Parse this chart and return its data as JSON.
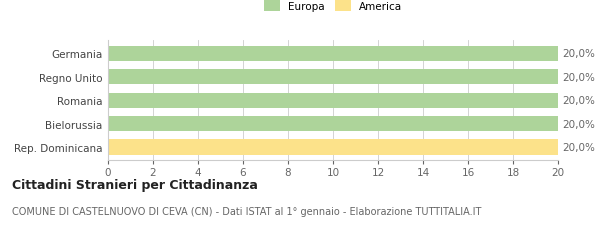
{
  "categories": [
    "Germania",
    "Regno Unito",
    "Romania",
    "Bielorussia",
    "Rep. Dominicana"
  ],
  "values": [
    20,
    20,
    20,
    20,
    20
  ],
  "colors": [
    "#add49a",
    "#add49a",
    "#add49a",
    "#add49a",
    "#fce28a"
  ],
  "legend": [
    {
      "label": "Europa",
      "color": "#add49a"
    },
    {
      "label": "America",
      "color": "#fce28a"
    }
  ],
  "xlim": [
    0,
    20
  ],
  "xticks": [
    0,
    2,
    4,
    6,
    8,
    10,
    12,
    14,
    16,
    18,
    20
  ],
  "bar_labels": [
    "20,0%",
    "20,0%",
    "20,0%",
    "20,0%",
    "20,0%"
  ],
  "title_bold": "Cittadini Stranieri per Cittadinanza",
  "subtitle": "COMUNE DI CASTELNUOVO DI CEVA (CN) - Dati ISTAT al 1° gennaio - Elaborazione TUTTITALIA.IT",
  "background_color": "#ffffff",
  "bar_edge_color": "none",
  "grid_color": "#cccccc",
  "label_fontsize": 7.5,
  "tick_fontsize": 7.5,
  "title_fontsize": 9,
  "subtitle_fontsize": 7
}
